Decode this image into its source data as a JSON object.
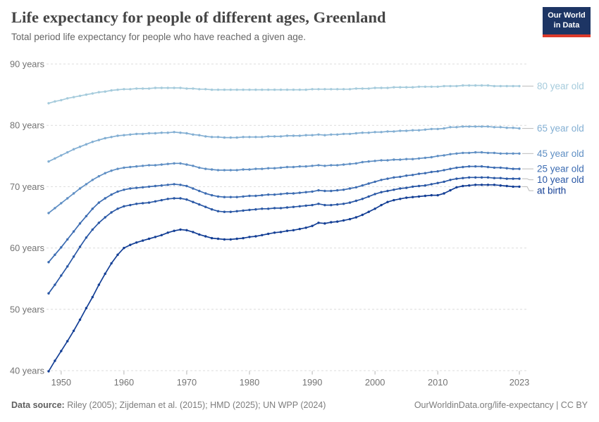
{
  "header": {
    "title": "Life expectancy for people of different ages, Greenland",
    "subtitle": "Total period life expectancy for people who have reached a given age.",
    "logo": {
      "line1": "Our World",
      "line2": "in Data"
    }
  },
  "footer": {
    "sources_label": "Data source:",
    "sources_rest": " Riley (2005); Zijdeman et al. (2015); HMD (2025); UN WPP (2024)",
    "credit": "OurWorldinData.org/life-expectancy | CC BY"
  },
  "colors": {
    "logo_navy": "#1d3564",
    "logo_red": "#dc3a2b",
    "grid": "#dcdcdc",
    "axis_text": "#737373",
    "tick_mark": "#b3b3b3",
    "connector": "#bbbbbb"
  },
  "chart_data": {
    "type": "line",
    "title": "Life expectancy for people of different ages, Greenland",
    "subtitle": "Total period life expectancy for people who have reached a given age.",
    "xlabel": "",
    "ylabel": "years",
    "grid": true,
    "legend_position": "right-end-labels",
    "x_range": [
      1948,
      2023
    ],
    "ylim": [
      40,
      90
    ],
    "x_ticks": [
      1950,
      1960,
      1970,
      1980,
      1990,
      2000,
      2010,
      2023
    ],
    "y_ticks": [
      {
        "value": 40,
        "label": "40 years"
      },
      {
        "value": 50,
        "label": "50 years"
      },
      {
        "value": 60,
        "label": "60 years"
      },
      {
        "value": 70,
        "label": "70 years"
      },
      {
        "value": 80,
        "label": "80 years"
      },
      {
        "value": 90,
        "label": "90 years"
      }
    ],
    "years": [
      1948,
      1949,
      1950,
      1951,
      1952,
      1953,
      1954,
      1955,
      1956,
      1957,
      1958,
      1959,
      1960,
      1961,
      1962,
      1963,
      1964,
      1965,
      1966,
      1967,
      1968,
      1969,
      1970,
      1971,
      1972,
      1973,
      1974,
      1975,
      1976,
      1977,
      1978,
      1979,
      1980,
      1981,
      1982,
      1983,
      1984,
      1985,
      1986,
      1987,
      1988,
      1989,
      1990,
      1991,
      1992,
      1993,
      1994,
      1995,
      1996,
      1997,
      1998,
      1999,
      2000,
      2001,
      2002,
      2003,
      2004,
      2005,
      2006,
      2007,
      2008,
      2009,
      2010,
      2011,
      2012,
      2013,
      2014,
      2015,
      2016,
      2017,
      2018,
      2019,
      2020,
      2021,
      2022,
      2023
    ],
    "series": [
      {
        "name": "80 year old",
        "color": "#a5cbdc",
        "values": [
          83.6,
          83.9,
          84.1,
          84.4,
          84.6,
          84.8,
          85.0,
          85.2,
          85.4,
          85.5,
          85.7,
          85.8,
          85.9,
          85.9,
          86.0,
          86.0,
          86.0,
          86.1,
          86.1,
          86.1,
          86.1,
          86.1,
          86.0,
          86.0,
          85.9,
          85.9,
          85.8,
          85.8,
          85.8,
          85.8,
          85.8,
          85.8,
          85.8,
          85.8,
          85.8,
          85.8,
          85.8,
          85.8,
          85.8,
          85.8,
          85.8,
          85.8,
          85.9,
          85.9,
          85.9,
          85.9,
          85.9,
          85.9,
          85.9,
          86.0,
          86.0,
          86.0,
          86.1,
          86.1,
          86.1,
          86.2,
          86.2,
          86.2,
          86.2,
          86.3,
          86.3,
          86.3,
          86.3,
          86.4,
          86.4,
          86.4,
          86.5,
          86.5,
          86.5,
          86.5,
          86.5,
          86.4,
          86.4,
          86.4,
          86.4,
          86.4
        ]
      },
      {
        "name": "65 year old",
        "color": "#83afd3",
        "values": [
          74.1,
          74.6,
          75.1,
          75.6,
          76.1,
          76.5,
          76.9,
          77.3,
          77.6,
          77.9,
          78.1,
          78.3,
          78.4,
          78.5,
          78.6,
          78.6,
          78.7,
          78.7,
          78.8,
          78.8,
          78.9,
          78.8,
          78.7,
          78.5,
          78.4,
          78.2,
          78.1,
          78.1,
          78.0,
          78.0,
          78.0,
          78.1,
          78.1,
          78.1,
          78.1,
          78.2,
          78.2,
          78.2,
          78.3,
          78.3,
          78.3,
          78.4,
          78.4,
          78.5,
          78.4,
          78.5,
          78.5,
          78.6,
          78.6,
          78.7,
          78.8,
          78.8,
          78.9,
          78.9,
          79.0,
          79.0,
          79.1,
          79.1,
          79.2,
          79.2,
          79.3,
          79.4,
          79.4,
          79.5,
          79.7,
          79.7,
          79.8,
          79.8,
          79.8,
          79.8,
          79.8,
          79.7,
          79.7,
          79.6,
          79.6,
          79.5
        ]
      },
      {
        "name": "45 year old",
        "color": "#5f8fc4",
        "values": [
          65.7,
          66.5,
          67.3,
          68.1,
          68.9,
          69.7,
          70.4,
          71.1,
          71.7,
          72.2,
          72.6,
          72.9,
          73.1,
          73.2,
          73.3,
          73.4,
          73.5,
          73.5,
          73.6,
          73.7,
          73.8,
          73.8,
          73.6,
          73.4,
          73.1,
          72.9,
          72.8,
          72.7,
          72.7,
          72.7,
          72.7,
          72.8,
          72.8,
          72.9,
          72.9,
          73.0,
          73.0,
          73.1,
          73.2,
          73.2,
          73.3,
          73.3,
          73.4,
          73.5,
          73.4,
          73.5,
          73.5,
          73.6,
          73.7,
          73.8,
          74.0,
          74.1,
          74.2,
          74.3,
          74.3,
          74.4,
          74.4,
          74.5,
          74.5,
          74.6,
          74.7,
          74.8,
          75.0,
          75.1,
          75.3,
          75.4,
          75.5,
          75.5,
          75.6,
          75.6,
          75.5,
          75.5,
          75.4,
          75.4,
          75.4,
          75.4
        ]
      },
      {
        "name": "25 year old",
        "color": "#3c6cb2",
        "values": [
          57.7,
          58.9,
          60.1,
          61.4,
          62.7,
          64.0,
          65.2,
          66.4,
          67.4,
          68.1,
          68.7,
          69.2,
          69.5,
          69.7,
          69.8,
          69.9,
          70.0,
          70.1,
          70.2,
          70.3,
          70.4,
          70.3,
          70.1,
          69.7,
          69.3,
          68.9,
          68.6,
          68.4,
          68.3,
          68.3,
          68.3,
          68.4,
          68.5,
          68.5,
          68.6,
          68.7,
          68.7,
          68.8,
          68.9,
          68.9,
          69.0,
          69.1,
          69.2,
          69.4,
          69.3,
          69.3,
          69.4,
          69.5,
          69.7,
          69.9,
          70.2,
          70.5,
          70.8,
          71.1,
          71.3,
          71.5,
          71.6,
          71.8,
          71.9,
          72.1,
          72.2,
          72.4,
          72.5,
          72.7,
          72.9,
          73.1,
          73.2,
          73.3,
          73.3,
          73.3,
          73.2,
          73.1,
          73.1,
          73.0,
          72.9,
          72.9
        ]
      },
      {
        "name": "10 year old",
        "color": "#2957a5",
        "values": [
          52.6,
          54.0,
          55.5,
          57.0,
          58.6,
          60.2,
          61.7,
          63.0,
          64.1,
          65.0,
          65.8,
          66.4,
          66.8,
          67.0,
          67.2,
          67.3,
          67.4,
          67.6,
          67.8,
          68.0,
          68.1,
          68.1,
          67.9,
          67.5,
          67.1,
          66.7,
          66.3,
          66.0,
          65.9,
          65.9,
          66.0,
          66.1,
          66.2,
          66.3,
          66.4,
          66.4,
          66.5,
          66.5,
          66.6,
          66.7,
          66.8,
          66.9,
          67.0,
          67.2,
          67.0,
          67.0,
          67.1,
          67.2,
          67.4,
          67.7,
          68.0,
          68.4,
          68.8,
          69.1,
          69.3,
          69.5,
          69.7,
          69.8,
          70.0,
          70.1,
          70.2,
          70.4,
          70.6,
          70.8,
          71.1,
          71.3,
          71.4,
          71.5,
          71.5,
          71.5,
          71.5,
          71.4,
          71.4,
          71.3,
          71.3,
          71.3
        ]
      },
      {
        "name": "at birth",
        "color": "#143f95",
        "values": [
          39.9,
          41.6,
          43.2,
          44.8,
          46.5,
          48.3,
          50.2,
          52.0,
          54.0,
          55.8,
          57.5,
          58.9,
          60.0,
          60.5,
          60.9,
          61.2,
          61.5,
          61.8,
          62.1,
          62.5,
          62.8,
          63.0,
          62.9,
          62.6,
          62.2,
          61.9,
          61.6,
          61.5,
          61.4,
          61.4,
          61.5,
          61.6,
          61.8,
          61.9,
          62.1,
          62.3,
          62.5,
          62.6,
          62.8,
          62.9,
          63.1,
          63.3,
          63.6,
          64.1,
          64.0,
          64.2,
          64.3,
          64.5,
          64.7,
          65.0,
          65.4,
          65.9,
          66.4,
          67.0,
          67.5,
          67.8,
          68.0,
          68.2,
          68.3,
          68.4,
          68.5,
          68.6,
          68.6,
          68.9,
          69.4,
          69.9,
          70.1,
          70.2,
          70.3,
          70.3,
          70.3,
          70.3,
          70.2,
          70.1,
          70.0,
          70.0
        ]
      }
    ]
  }
}
